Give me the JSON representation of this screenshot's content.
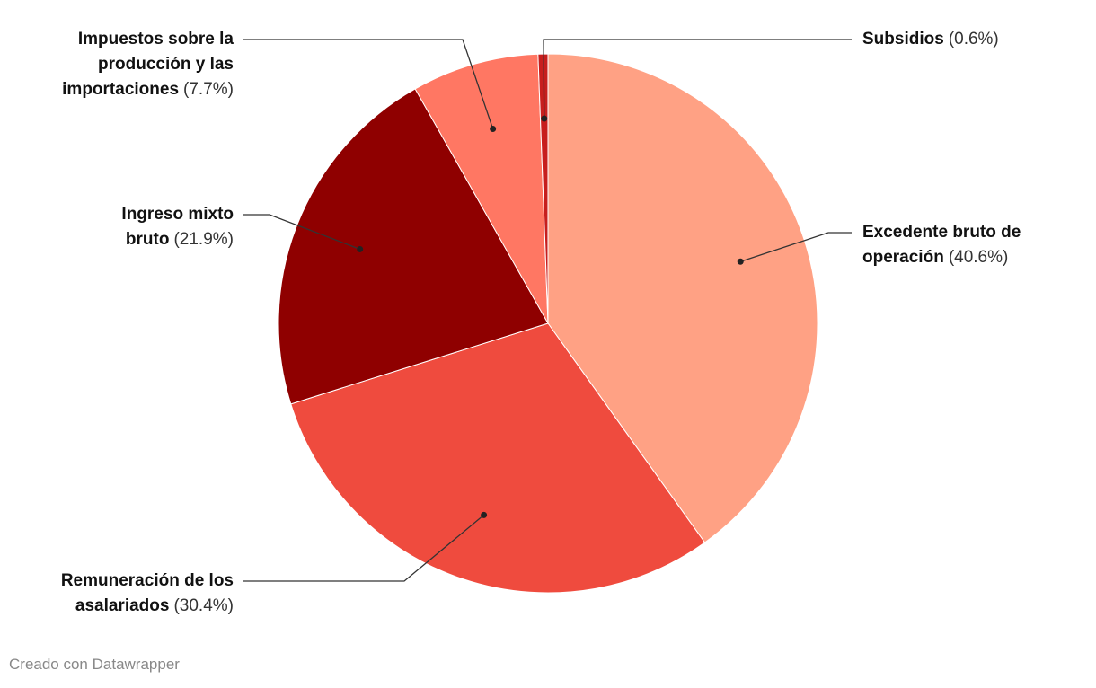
{
  "chart_data": {
    "type": "pie",
    "categories": [
      "Excedente bruto de operación",
      "Remuneración de los asalariados",
      "Ingreso mixto bruto",
      "Impuestos sobre la producción y las importaciones",
      "Subsidios"
    ],
    "values": [
      40.6,
      30.4,
      21.9,
      7.7,
      0.6
    ],
    "value_labels": [
      "(40.6%)",
      "(30.4%)",
      "(21.9%)",
      "(7.7%)",
      "(0.6%)"
    ],
    "colors": [
      "#ffa184",
      "#ef4b3e",
      "#8f0000",
      "#ff7763",
      "#c71e1d"
    ],
    "source": "Creado con Datawrapper"
  }
}
